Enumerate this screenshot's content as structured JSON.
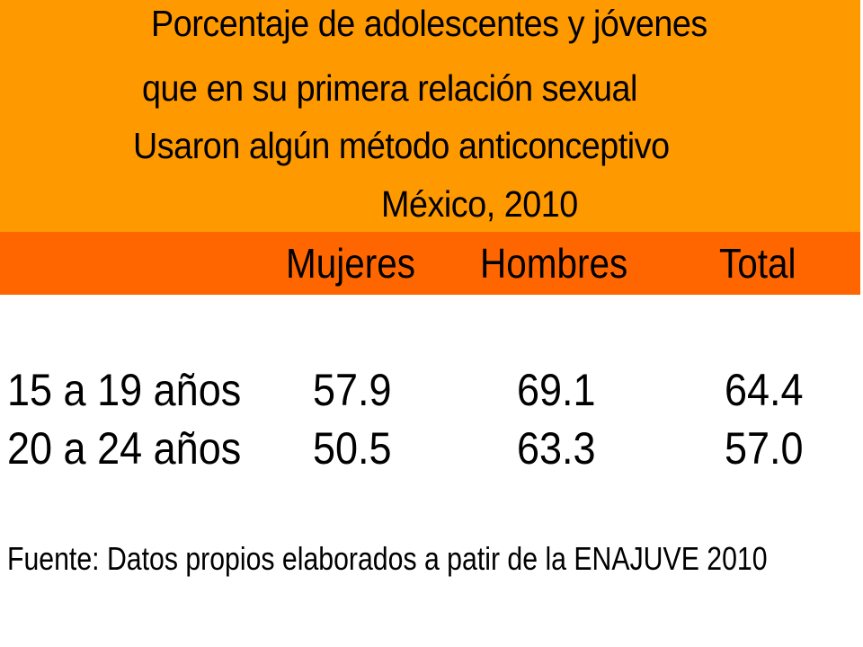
{
  "colors": {
    "title_band": "#ff9900",
    "header_band": "#ff6600",
    "text": "#000000",
    "background": "#ffffff"
  },
  "title": {
    "line1": "Porcentaje de adolescentes y jóvenes",
    "line2": "que en su primera relación sexual",
    "line3": "Usaron algún método anticonceptivo",
    "line4": "México, 2010"
  },
  "source": "Fuente: Datos propios elaborados a patir de la ENAJUVE 2010",
  "chart_data": {
    "type": "table",
    "title": "Porcentaje de adolescentes y jóvenes que en su primera relación sexual Usaron algún método anticonceptivo México, 2010",
    "columns": [
      "Mujeres",
      "Hombres",
      "Total"
    ],
    "rows": [
      {
        "label": "15 a 19 años",
        "values": [
          "57.9",
          "69.1",
          "64.4"
        ]
      },
      {
        "label": "20 a 24 años",
        "values": [
          "50.5",
          "63.3",
          "57.0"
        ]
      }
    ]
  }
}
